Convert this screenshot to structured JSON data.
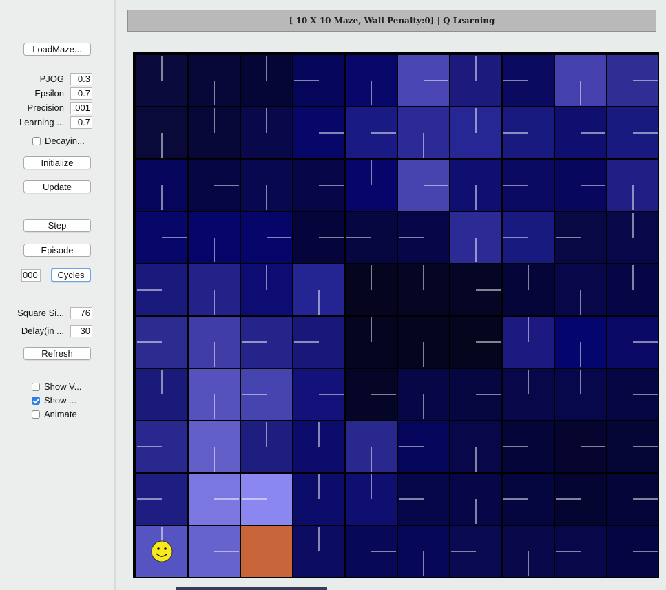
{
  "controls": {
    "load_maze_label": "LoadMaze...",
    "params": [
      {
        "label": "PJOG",
        "value": "0.3"
      },
      {
        "label": "Epsilon",
        "value": "0.7"
      },
      {
        "label": "Precision",
        "value": ".001"
      },
      {
        "label": "Learning ...",
        "value": "0.7"
      }
    ],
    "decaying_label": "Decayin...",
    "decaying_checked": false,
    "initialize_label": "Initialize",
    "update_label": "Update",
    "step_label": "Step",
    "episode_label": "Episode",
    "cycles_value": "000",
    "cycles_label": "Cycles",
    "square_size_label": "Square Si...",
    "square_size_value": "76",
    "delay_label": "Delay(in ...",
    "delay_value": "30",
    "refresh_label": "Refresh",
    "show_values_label": "Show V...",
    "show_values_checked": false,
    "show_policy_label": "Show ...",
    "show_policy_checked": true,
    "animate_label": "Animate",
    "animate_checked": false
  },
  "title": "[ 10 X 10 Maze, Wall Penalty:0] |  Q Learning",
  "maze": {
    "rows": 10,
    "cols": 10,
    "agent_position": {
      "row": 9,
      "col": 0
    },
    "goal_position": {
      "row": 9,
      "col": 2
    },
    "goal_color": "#c8653a",
    "agent_icon": "smiley-face-icon",
    "cell_colors": [
      [
        "#0a0a3c",
        "#070838",
        "#060636",
        "#05055a",
        "#08086a",
        "#4a46b4",
        "#1c1a7c",
        "#0a0a60",
        "#4440ae",
        "#2e2e94"
      ],
      [
        "#0a0a3a",
        "#070838",
        "#08084a",
        "#07076a",
        "#1a1a84",
        "#2c2a96",
        "#262694",
        "#181a80",
        "#0f0f70",
        "#181a80"
      ],
      [
        "#05055c",
        "#060644",
        "#080850",
        "#060648",
        "#05056a",
        "#4644ae",
        "#0f0f72",
        "#0a0a62",
        "#07075e",
        "#1e1e84"
      ],
      [
        "#07076a",
        "#05056a",
        "#06066a",
        "#05053c",
        "#060640",
        "#060648",
        "#2c2a94",
        "#181a80",
        "#070844",
        "#07074a"
      ],
      [
        "#1a1a7c",
        "#222288",
        "#0c0c72",
        "#242492",
        "#050520",
        "#050524",
        "#050526",
        "#05053a",
        "#07074a",
        "#060646"
      ],
      [
        "#2c2c90",
        "#403ea6",
        "#24248a",
        "#18187a",
        "#050522",
        "#050520",
        "#05051e",
        "#1c1a80",
        "#05056e",
        "#0a0a66"
      ],
      [
        "#1a1a7a",
        "#5552be",
        "#4644ae",
        "#12127a",
        "#050528",
        "#070748",
        "#060640",
        "#07074a",
        "#07074c",
        "#060644"
      ],
      [
        "#28288e",
        "#6260c8",
        "#1e1e80",
        "#0c0c6c",
        "#28288e",
        "#05055c",
        "#07074a",
        "#05053a",
        "#050530",
        "#050536"
      ],
      [
        "#1e1e82",
        "#7a78e0",
        "#8a88f0",
        "#0c0c6a",
        "#0f0f72",
        "#06064a",
        "#060648",
        "#050540",
        "#050532",
        "#05053a"
      ],
      [
        "#5654c0",
        "#6664cc",
        "#c8653a",
        "#0c0c62",
        "#080858",
        "#07075a",
        "#0a0a52",
        "#08084a",
        "#07074a",
        "#050544"
      ]
    ],
    "policy": [
      [
        "N",
        "S",
        "N",
        "W",
        "S",
        "E",
        "N",
        "W",
        "S",
        "E"
      ],
      [
        "S",
        "N",
        "N",
        "E",
        "E",
        "S",
        "N",
        "W",
        "E",
        "E"
      ],
      [
        "S",
        "E",
        "S",
        "E",
        "N",
        "E",
        "S",
        "W",
        "E",
        "S"
      ],
      [
        "E",
        "S",
        "E",
        "E",
        "W",
        "W",
        "S",
        "W",
        "W",
        "N"
      ],
      [
        "W",
        "S",
        "N",
        "S",
        "N",
        "N",
        "E",
        "N",
        "S",
        "N"
      ],
      [
        "W",
        "S",
        "W",
        "W",
        "N",
        "S",
        "E",
        "N",
        "S",
        "E"
      ],
      [
        "N",
        "S",
        "W",
        "E",
        "E",
        "S",
        "E",
        "N",
        "N",
        "E"
      ],
      [
        "W",
        "S",
        "N",
        "N",
        "S",
        "W",
        "S",
        "W",
        "E",
        "E"
      ],
      [
        "W",
        "E",
        "W",
        "N",
        "N",
        "W",
        "S",
        "W",
        "W",
        "E"
      ],
      [
        "N",
        "E",
        "",
        "N",
        "E",
        "S",
        "W",
        "S",
        "W",
        "E"
      ]
    ]
  }
}
